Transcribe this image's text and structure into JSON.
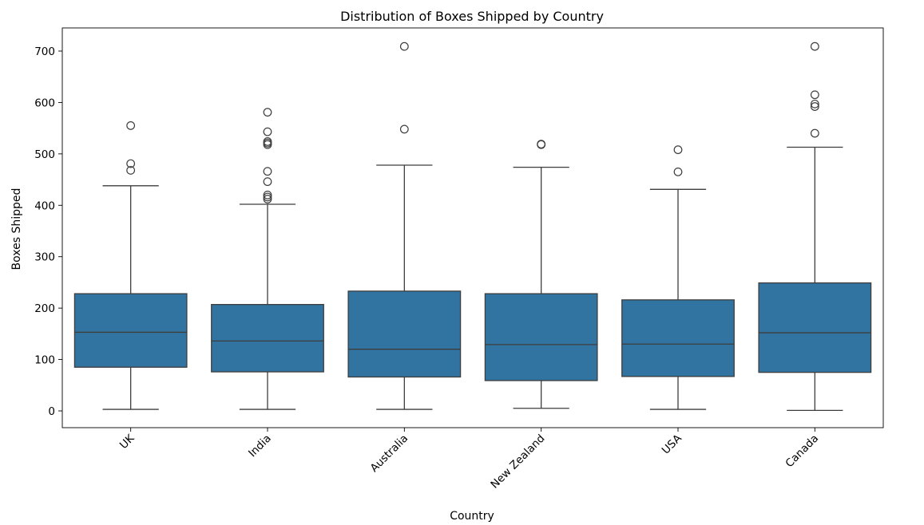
{
  "chart_data": {
    "type": "box",
    "title": "Distribution of Boxes Shipped by Country",
    "xlabel": "Country",
    "ylabel": "Boxes Shipped",
    "ylim": [
      -33,
      747
    ],
    "yticks": [
      0,
      100,
      200,
      300,
      400,
      500,
      600,
      700
    ],
    "grid": false,
    "box_color": "#3274a1",
    "line_color": "#3d3d3d",
    "categories": [
      "UK",
      "India",
      "Australia",
      "New Zealand",
      "USA",
      "Canada"
    ],
    "boxes": [
      {
        "category": "UK",
        "whisker_low": 3,
        "q1": 85,
        "median": 153,
        "q3": 228,
        "whisker_high": 438,
        "outliers": [
          468,
          481,
          555
        ]
      },
      {
        "category": "India",
        "whisker_low": 3,
        "q1": 76,
        "median": 136,
        "q3": 207,
        "whisker_high": 402,
        "outliers": [
          412,
          416,
          420,
          446,
          466,
          518,
          521,
          524,
          543,
          581
        ]
      },
      {
        "category": "Australia",
        "whisker_low": 3,
        "q1": 66,
        "median": 120,
        "q3": 233,
        "whisker_high": 478,
        "outliers": [
          548,
          709
        ]
      },
      {
        "category": "New Zealand",
        "whisker_low": 5,
        "q1": 59,
        "median": 129,
        "q3": 228,
        "whisker_high": 474,
        "outliers": [
          518,
          519
        ]
      },
      {
        "category": "USA",
        "whisker_low": 3,
        "q1": 67,
        "median": 130,
        "q3": 216,
        "whisker_high": 431,
        "outliers": [
          465,
          508
        ]
      },
      {
        "category": "Canada",
        "whisker_low": 1,
        "q1": 75,
        "median": 152,
        "q3": 249,
        "whisker_high": 513,
        "outliers": [
          540,
          592,
          597,
          615,
          709
        ]
      }
    ]
  }
}
